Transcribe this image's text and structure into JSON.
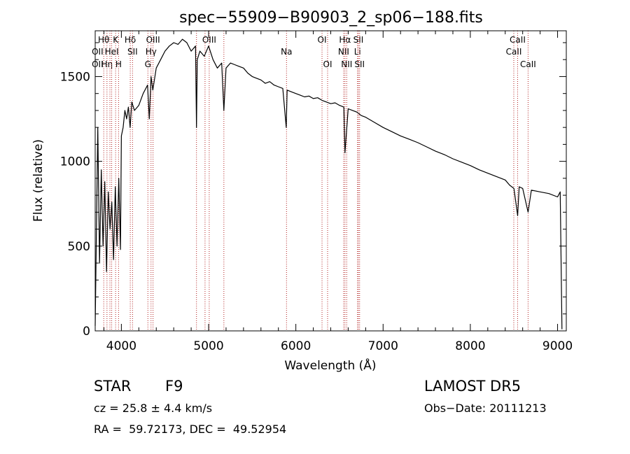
{
  "chart_data": {
    "type": "line",
    "title": "spec−55909−B90903_2_sp06−188.fits",
    "xlabel": "Wavelength (Å)",
    "ylabel": "Flux (relative)",
    "xlim": [
      3700,
      9100
    ],
    "ylim": [
      0,
      1770
    ],
    "x_ticks": [
      4000,
      5000,
      6000,
      7000,
      8000,
      9000
    ],
    "y_ticks": [
      0,
      500,
      1000,
      1500
    ],
    "grid": false,
    "line_color": "#000000",
    "marker_color": "#b22222",
    "series": [
      {
        "x": [
          3700,
          3730,
          3750,
          3770,
          3790,
          3810,
          3830,
          3850,
          3870,
          3890,
          3910,
          3930,
          3950,
          3970,
          3990,
          4000,
          4020,
          4040,
          4060,
          4080,
          4100,
          4120,
          4150,
          4200,
          4250,
          4300,
          4320,
          4340,
          4360,
          4400,
          4450,
          4500,
          4550,
          4600,
          4650,
          4700,
          4750,
          4800,
          4850,
          4861,
          4870,
          4900,
          4950,
          5000,
          5050,
          5100,
          5150,
          5175,
          5200,
          5250,
          5300,
          5350,
          5400,
          5450,
          5500,
          5550,
          5600,
          5650,
          5700,
          5750,
          5800,
          5850,
          5890,
          5900,
          5950,
          6000,
          6050,
          6100,
          6150,
          6200,
          6250,
          6300,
          6350,
          6400,
          6450,
          6500,
          6550,
          6563,
          6600,
          6650,
          6700,
          6750,
          6800,
          6900,
          7000,
          7100,
          7200,
          7300,
          7400,
          7500,
          7600,
          7700,
          7800,
          7900,
          8000,
          8100,
          8200,
          8300,
          8400,
          8450,
          8500,
          8542,
          8560,
          8600,
          8662,
          8700,
          8800,
          8900,
          9000,
          9030,
          9050
        ],
        "y": [
          30,
          1200,
          400,
          950,
          500,
          880,
          350,
          820,
          600,
          760,
          420,
          850,
          500,
          900,
          480,
          1150,
          1200,
          1300,
          1250,
          1320,
          1200,
          1350,
          1300,
          1330,
          1400,
          1450,
          1250,
          1500,
          1420,
          1550,
          1600,
          1650,
          1680,
          1700,
          1690,
          1720,
          1700,
          1650,
          1680,
          1200,
          1600,
          1650,
          1620,
          1680,
          1600,
          1550,
          1580,
          1300,
          1550,
          1580,
          1570,
          1560,
          1550,
          1520,
          1500,
          1490,
          1480,
          1460,
          1470,
          1450,
          1440,
          1430,
          1200,
          1420,
          1410,
          1400,
          1390,
          1380,
          1385,
          1370,
          1375,
          1360,
          1350,
          1340,
          1345,
          1330,
          1320,
          1050,
          1310,
          1300,
          1290,
          1270,
          1260,
          1230,
          1200,
          1175,
          1150,
          1130,
          1110,
          1085,
          1060,
          1040,
          1015,
          995,
          975,
          950,
          930,
          910,
          890,
          860,
          840,
          680,
          850,
          840,
          700,
          830,
          820,
          810,
          790,
          820,
          10
        ]
      }
    ],
    "line_markers": [
      {
        "w": 3798,
        "label": "Hθ",
        "row": 0
      },
      {
        "w": 3835,
        "label": "Hη",
        "row": 2
      },
      {
        "w": 3869,
        "label": "",
        "row": 0
      },
      {
        "w": 3889,
        "label": "HeI",
        "row": 1
      },
      {
        "w": 3934,
        "label": "K",
        "row": 0
      },
      {
        "w": 3968,
        "label": "H",
        "row": 2
      },
      {
        "w": 4102,
        "label": "Hδ",
        "row": 0
      },
      {
        "w": 4128,
        "label": "SII",
        "row": 1
      },
      {
        "w": 4304,
        "label": "G",
        "row": 2
      },
      {
        "w": 4340,
        "label": "Hγ",
        "row": 1
      },
      {
        "w": 4363,
        "label": "OIII",
        "row": 0
      },
      {
        "w": 4861,
        "label": "",
        "row": 0
      },
      {
        "w": 4959,
        "label": "",
        "row": 0
      },
      {
        "w": 5007,
        "label": "OIII",
        "row": 0
      },
      {
        "w": 5175,
        "label": "",
        "row": 0
      },
      {
        "w": 5893,
        "label": "Na",
        "row": 1
      },
      {
        "w": 6300,
        "label": "OI",
        "row": 0
      },
      {
        "w": 6364,
        "label": "OI",
        "row": 2
      },
      {
        "w": 6548,
        "label": "NII",
        "row": 1
      },
      {
        "w": 6563,
        "label": "Hα",
        "row": 0
      },
      {
        "w": 6583,
        "label": "NII",
        "row": 2
      },
      {
        "w": 6707,
        "label": "Li",
        "row": 1
      },
      {
        "w": 6717,
        "label": "SII",
        "row": 0
      },
      {
        "w": 6731,
        "label": "SII",
        "row": 2
      },
      {
        "w": 8498,
        "label": "CaII",
        "row": 1
      },
      {
        "w": 8542,
        "label": "CaII",
        "row": 0
      },
      {
        "w": 8662,
        "label": "CaII",
        "row": 2
      }
    ],
    "edge_labels": [
      {
        "w": 3727,
        "row": 1,
        "label": "OII"
      },
      {
        "w": 3727,
        "row": 2,
        "label": "OII"
      }
    ]
  },
  "info": {
    "class": "STAR",
    "subclass": "F9",
    "survey": "LAMOST DR5",
    "cz": "cz = 25.8 ± 4.4 km/s",
    "obs_date": "Obs−Date: 20111213",
    "radec": "RA =  59.72173, DEC =  49.52954"
  }
}
